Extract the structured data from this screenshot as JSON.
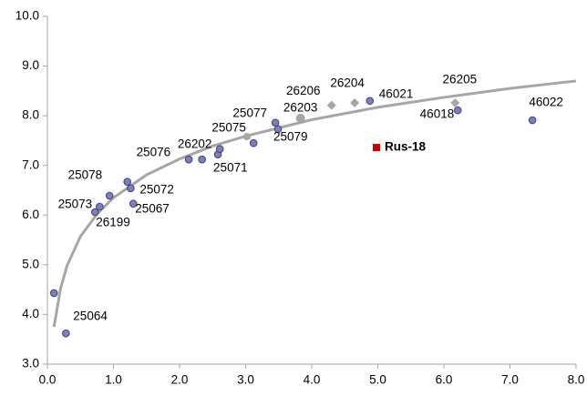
{
  "chart_data": {
    "type": "scatter",
    "xlim": [
      0,
      8
    ],
    "xticks": [
      {
        "value": 0,
        "label": "0.0"
      },
      {
        "value": 1,
        "label": "1.0"
      },
      {
        "value": 2,
        "label": "2.0"
      },
      {
        "value": 3,
        "label": "3.0"
      },
      {
        "value": 4,
        "label": "4.0"
      },
      {
        "value": 5,
        "label": "5.0"
      },
      {
        "value": 6,
        "label": "6.0"
      },
      {
        "value": 7,
        "label": "7.0"
      },
      {
        "value": 8,
        "label": "8.0"
      }
    ],
    "ylim": [
      3,
      10
    ],
    "yticks": [
      {
        "value": 3,
        "label": "3.0"
      },
      {
        "value": 4,
        "label": "4.0"
      },
      {
        "value": 5,
        "label": "5.0"
      },
      {
        "value": 6,
        "label": "6.0"
      },
      {
        "value": 7,
        "label": "7.0"
      },
      {
        "value": 8,
        "label": "8.0"
      },
      {
        "value": 9,
        "label": "9.0"
      },
      {
        "value": 10,
        "label": "10.0"
      }
    ],
    "grid": false,
    "series": [
      {
        "marker": "line",
        "color": "#a6a6a6",
        "x": [
          0.1,
          0.2,
          0.3,
          0.5,
          0.75,
          1,
          1.5,
          2,
          2.5,
          3,
          4,
          5,
          6,
          7,
          8
        ],
        "values": [
          3.75,
          4.53,
          4.99,
          5.57,
          6.02,
          6.35,
          6.81,
          7.13,
          7.39,
          7.59,
          7.92,
          8.17,
          8.37,
          8.55,
          8.7
        ]
      },
      {
        "marker": "circle",
        "color": "#7f7fb3",
        "x": [
          0.1,
          0.28,
          0.72,
          0.79,
          0.94,
          1.21,
          1.26,
          1.3,
          2.14,
          2.34,
          2.58,
          2.61,
          3.12,
          3.45,
          3.49,
          4.88,
          6.21,
          7.34
        ],
        "values": [
          4.43,
          3.62,
          6.06,
          6.17,
          6.39,
          6.67,
          6.54,
          6.23,
          7.12,
          7.12,
          7.22,
          7.33,
          7.45,
          7.86,
          7.73,
          8.3,
          8.11,
          7.91
        ],
        "labels": [
          null,
          "25064",
          "25073",
          "26199",
          "25078",
          null,
          "25072",
          "25067",
          "25076",
          "26202",
          "25071",
          null,
          "25077",
          null,
          "25079",
          "46021",
          "46018",
          "46022"
        ]
      },
      {
        "marker": "circle-gray",
        "color": "#a6a6a6",
        "x": [
          3.02,
          3.83
        ],
        "values": [
          7.58,
          7.95
        ],
        "labels": [
          "25075",
          "26203"
        ]
      },
      {
        "marker": "diamond",
        "color": "#a6a6a6",
        "x": [
          4.3,
          4.65,
          6.17
        ],
        "values": [
          8.21,
          8.26,
          8.26
        ],
        "labels": [
          "26206",
          "26204",
          "26205"
        ]
      },
      {
        "marker": "square",
        "color": "#c00000",
        "x": [
          4.98
        ],
        "values": [
          7.36
        ],
        "labels": [
          "Rus-18"
        ]
      }
    ]
  }
}
